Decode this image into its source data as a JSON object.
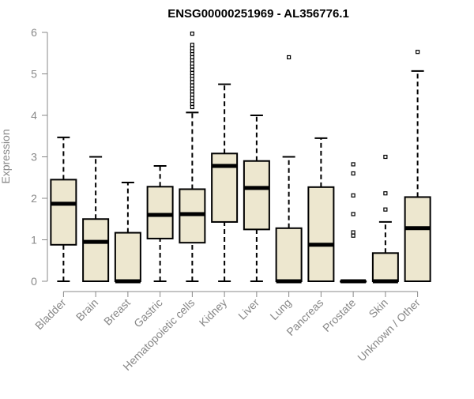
{
  "chart_data": {
    "type": "boxplot",
    "title": "ENSG00000251969 - AL356776.1",
    "xlabel": "",
    "ylabel": "Expression",
    "ylim": [
      0,
      6
    ],
    "yticks": [
      0,
      1,
      2,
      3,
      4,
      5,
      6
    ],
    "box_fill": "#ede7cf",
    "box_stroke": "#000000",
    "categories": [
      "Bladder",
      "Brain",
      "Breast",
      "Gastric",
      "Hematopoietic cells",
      "Kidney",
      "Liver",
      "Lung",
      "Pancreas",
      "Prostate",
      "Skin",
      "Unknown / Other"
    ],
    "boxes": [
      {
        "name": "Bladder",
        "min": 0,
        "q1": 0.88,
        "median": 1.87,
        "q3": 2.45,
        "max": 3.47,
        "outliers": []
      },
      {
        "name": "Brain",
        "min": 0,
        "q1": 0,
        "median": 0.95,
        "q3": 1.5,
        "max": 3.0,
        "outliers": []
      },
      {
        "name": "Breast",
        "min": 0,
        "q1": 0,
        "median": 0,
        "q3": 1.17,
        "max": 2.38,
        "outliers": []
      },
      {
        "name": "Gastric",
        "min": 0,
        "q1": 1.03,
        "median": 1.6,
        "q3": 2.28,
        "max": 2.78,
        "outliers": []
      },
      {
        "name": "Hematopoietic cells",
        "min": 0,
        "q1": 0.93,
        "median": 1.62,
        "q3": 2.22,
        "max": 4.07,
        "outliers": [
          4.2,
          4.28,
          4.35,
          4.42,
          4.5,
          4.58,
          4.65,
          4.72,
          4.8,
          4.88,
          4.95,
          5.02,
          5.1,
          5.18,
          5.25,
          5.33,
          5.4,
          5.48,
          5.55,
          5.62,
          5.7,
          5.97
        ]
      },
      {
        "name": "Kidney",
        "min": 0,
        "q1": 1.43,
        "median": 2.78,
        "q3": 3.08,
        "max": 4.75,
        "outliers": []
      },
      {
        "name": "Liver",
        "min": 0,
        "q1": 1.25,
        "median": 2.25,
        "q3": 2.9,
        "max": 4.0,
        "outliers": []
      },
      {
        "name": "Lung",
        "min": 0,
        "q1": 0,
        "median": 0,
        "q3": 1.28,
        "max": 3.0,
        "outliers": [
          5.4
        ]
      },
      {
        "name": "Pancreas",
        "min": 0,
        "q1": 0,
        "median": 0.88,
        "q3": 2.27,
        "max": 3.45,
        "outliers": []
      },
      {
        "name": "Prostate",
        "min": 0,
        "q1": 0,
        "median": 0,
        "q3": 0,
        "max": 0,
        "outliers": [
          1.1,
          1.18,
          1.62,
          2.07,
          2.6,
          2.82
        ]
      },
      {
        "name": "Skin",
        "min": 0,
        "q1": 0,
        "median": 0,
        "q3": 0.68,
        "max": 1.43,
        "outliers": [
          1.73,
          2.12,
          3.0
        ]
      },
      {
        "name": "Unknown / Other",
        "min": 0,
        "q1": 0,
        "median": 1.28,
        "q3": 2.03,
        "max": 5.07,
        "outliers": [
          5.53
        ]
      }
    ]
  }
}
